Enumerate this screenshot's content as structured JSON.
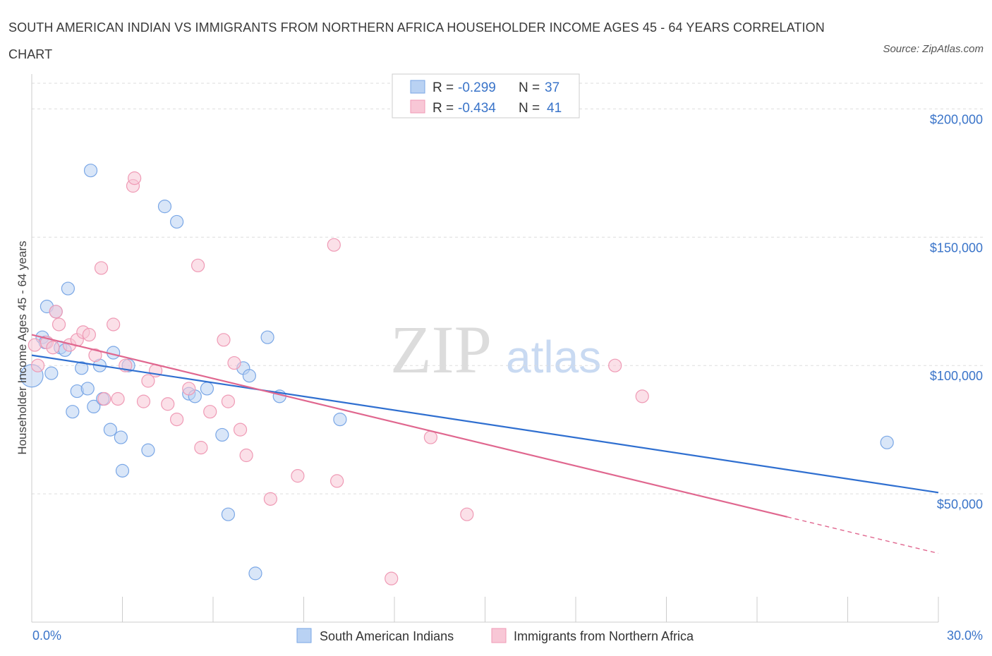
{
  "title": "SOUTH AMERICAN INDIAN VS IMMIGRANTS FROM NORTHERN AFRICA HOUSEHOLDER INCOME AGES 45 - 64 YEARS CORRELATION CHART",
  "source": "Source: ZipAtlas.com",
  "watermark": {
    "zip": "ZIP",
    "atlas": "atlas"
  },
  "chart_data": {
    "type": "scatter",
    "title": "SOUTH AMERICAN INDIAN VS IMMIGRANTS FROM NORTHERN AFRICA HOUSEHOLDER INCOME AGES 45 - 64 YEARS CORRELATION CHART",
    "xlabel": "",
    "ylabel": "Householder Income Ages 45 - 64 years",
    "xlim": [
      0,
      30
    ],
    "ylim": [
      0,
      210000
    ],
    "x_tick_labels": [
      "0.0%",
      "30.0%"
    ],
    "y_ticks": [
      50000,
      100000,
      150000,
      200000
    ],
    "y_tick_labels": [
      "$50,000",
      "$100,000",
      "$150,000",
      "$200,000"
    ],
    "grid": true,
    "legend_top": [
      {
        "r_label": "R =",
        "r_value": "-0.299",
        "n_label": "N =",
        "n_value": "37"
      },
      {
        "r_label": "R =",
        "r_value": "-0.434",
        "n_label": "N =",
        "n_value": "41"
      }
    ],
    "series": [
      {
        "name": "South American Indians",
        "color": "#7aa7e6",
        "fill": "#b9d2f3",
        "line_color": "#2f6fd0",
        "trend": {
          "x": [
            0,
            30
          ],
          "y": [
            104000,
            50500
          ]
        },
        "points": [
          [
            0.0,
            96000
          ],
          [
            0.35,
            111000
          ],
          [
            0.45,
            109000
          ],
          [
            0.5,
            123000
          ],
          [
            0.65,
            97000
          ],
          [
            0.8,
            121000
          ],
          [
            0.95,
            107000
          ],
          [
            1.1,
            106000
          ],
          [
            1.2,
            130000
          ],
          [
            1.35,
            82000
          ],
          [
            1.5,
            90000
          ],
          [
            1.65,
            99000
          ],
          [
            1.85,
            91000
          ],
          [
            1.95,
            176000
          ],
          [
            2.05,
            84000
          ],
          [
            2.25,
            100000
          ],
          [
            2.35,
            87000
          ],
          [
            2.6,
            75000
          ],
          [
            2.7,
            105000
          ],
          [
            2.95,
            72000
          ],
          [
            3.0,
            59000
          ],
          [
            3.2,
            100000
          ],
          [
            3.85,
            67000
          ],
          [
            4.4,
            162000
          ],
          [
            4.8,
            156000
          ],
          [
            5.2,
            89000
          ],
          [
            5.4,
            88000
          ],
          [
            5.8,
            91000
          ],
          [
            6.3,
            73000
          ],
          [
            6.5,
            42000
          ],
          [
            7.0,
            99000
          ],
          [
            7.2,
            96000
          ],
          [
            7.4,
            19000
          ],
          [
            7.8,
            111000
          ],
          [
            8.2,
            88000
          ],
          [
            10.2,
            79000
          ],
          [
            28.3,
            70000
          ]
        ]
      },
      {
        "name": "Immigrants from Northern Africa",
        "color": "#ef9ab5",
        "fill": "#f8c7d6",
        "line_color": "#e0678f",
        "trend": {
          "x": [
            0,
            25
          ],
          "y": [
            112000,
            41000
          ]
        },
        "trend_dashed": {
          "x": [
            25,
            30
          ],
          "y": [
            41000,
            26800
          ]
        },
        "points": [
          [
            0.1,
            108000
          ],
          [
            0.2,
            100000
          ],
          [
            0.5,
            109000
          ],
          [
            0.7,
            107000
          ],
          [
            0.8,
            121000
          ],
          [
            0.9,
            116000
          ],
          [
            1.25,
            108000
          ],
          [
            1.5,
            110000
          ],
          [
            1.7,
            113000
          ],
          [
            1.9,
            112000
          ],
          [
            2.1,
            104000
          ],
          [
            2.3,
            138000
          ],
          [
            2.4,
            87000
          ],
          [
            2.7,
            116000
          ],
          [
            2.85,
            87000
          ],
          [
            3.1,
            100000
          ],
          [
            3.35,
            170000
          ],
          [
            3.4,
            173000
          ],
          [
            3.7,
            86000
          ],
          [
            3.85,
            94000
          ],
          [
            4.1,
            98000
          ],
          [
            4.5,
            85000
          ],
          [
            4.8,
            79000
          ],
          [
            5.2,
            91000
          ],
          [
            5.5,
            139000
          ],
          [
            5.6,
            68000
          ],
          [
            5.9,
            82000
          ],
          [
            6.35,
            110000
          ],
          [
            6.5,
            86000
          ],
          [
            6.7,
            101000
          ],
          [
            6.9,
            75000
          ],
          [
            7.1,
            65000
          ],
          [
            7.9,
            48000
          ],
          [
            8.8,
            57000
          ],
          [
            10.0,
            147000
          ],
          [
            10.1,
            55000
          ],
          [
            11.9,
            17000
          ],
          [
            13.2,
            72000
          ],
          [
            14.4,
            42000
          ],
          [
            19.3,
            100000
          ],
          [
            20.2,
            88000
          ]
        ]
      }
    ]
  }
}
